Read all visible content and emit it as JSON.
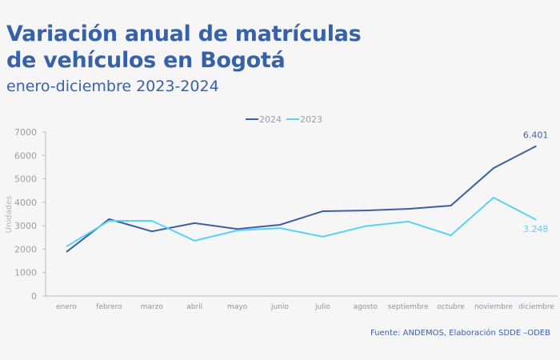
{
  "header": {
    "title_line1": "Variación anual de matrículas",
    "title_line2": "de vehículos en Bogotá",
    "subtitle": "enero-diciembre 2023-2024"
  },
  "footer": {
    "source": "Fuente: ANDEMOS, Elaboración SDDE –ODEB"
  },
  "chart_data": {
    "type": "line",
    "title": "Variación anual de matrículas de vehículos en Bogotá",
    "subtitle": "enero-diciembre 2023-2024",
    "xlabel": "",
    "ylabel": "Unidades",
    "ylim": [
      0,
      7000
    ],
    "yticks": [
      0,
      1000,
      2000,
      3000,
      4000,
      5000,
      6000,
      7000
    ],
    "grid": false,
    "legend_position": "top-center",
    "categories": [
      "enero",
      "febrero",
      "marzo",
      "abril",
      "mayo",
      "junio",
      "julio",
      "agosto",
      "septiembre",
      "octubre",
      "noviembre",
      "diciembre"
    ],
    "series": [
      {
        "name": "2024",
        "color": "#3d5fa3",
        "values": [
          1880,
          3280,
          2760,
          3110,
          2860,
          3040,
          3620,
          3650,
          3720,
          3860,
          5460,
          6401
        ],
        "end_label": "6.401"
      },
      {
        "name": "2023",
        "color": "#5ad2f4",
        "values": [
          2110,
          3210,
          3210,
          2360,
          2800,
          2900,
          2530,
          2980,
          3180,
          2590,
          4200,
          3248
        ],
        "end_label": "3.248"
      }
    ]
  }
}
